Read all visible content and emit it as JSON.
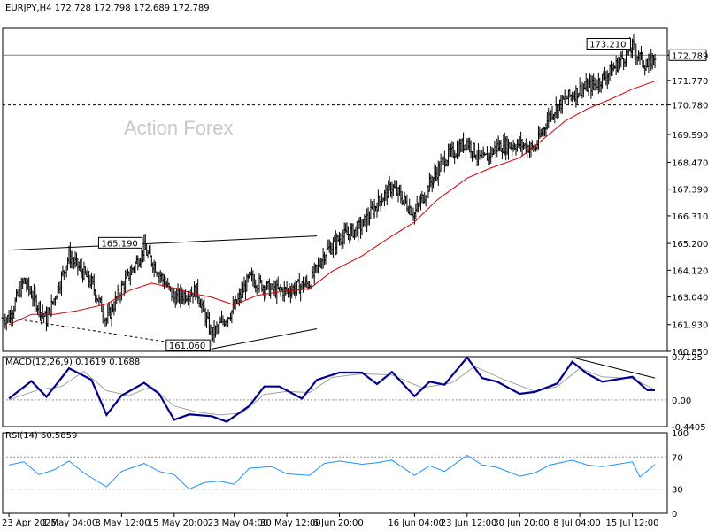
{
  "header": {
    "main": "EURJPY,H4  172.728 172.798 172.689 172.789",
    "macd": "MACD(12,26,9) 0.1619 0.1688",
    "rsi": "RSI(14) 60.5859"
  },
  "watermark": "Action Forex",
  "colors": {
    "bull": "#000000",
    "bear": "#000000",
    "ma": "#d00000",
    "macd": "#00008b",
    "signal": "#a0a0a0",
    "rsi": "#1e90ff",
    "frame": "#000000",
    "level": "#808080",
    "watermark": "#c8c8c8"
  },
  "chart_data": [
    {
      "type": "candlestick",
      "title": "EURJPY,H4",
      "ylim": [
        160.85,
        173.87
      ],
      "price_ticks": [
        173.87,
        172.789,
        171.77,
        170.78,
        169.59,
        168.47,
        167.39,
        166.31,
        165.2,
        164.12,
        163.04,
        161.93,
        160.85
      ],
      "price_tick_labels": [
        "",
        "172.789",
        "171.770",
        "170.780",
        "169.590",
        "168.470",
        "167.390",
        "166.310",
        "165.200",
        "164.120",
        "163.040",
        "161.930",
        "160.850"
      ],
      "last_price": 172.789,
      "level_lines": [
        {
          "value": 172.789,
          "style": "solid"
        },
        {
          "value": 170.78,
          "style": "dashed"
        }
      ],
      "annotations": [
        {
          "label": "173.210",
          "value": 173.21,
          "date": "15 Jul 2025"
        },
        {
          "label": "165.190",
          "value": 165.19,
          "date": "11 May 2025"
        },
        {
          "label": "161.060",
          "value": 161.06,
          "date": "20 May 2025"
        }
      ],
      "trendlines": [
        {
          "from": {
            "date": "23 Apr 2025",
            "value": 164.93
          },
          "to": {
            "date": "3 Jun 2025",
            "value": 165.5
          },
          "style": "solid"
        },
        {
          "from": {
            "date": "23 Apr 2025",
            "value": 162.2
          },
          "to": {
            "date": "20 May 2025",
            "value": 160.95
          },
          "style": "dashed"
        },
        {
          "from": {
            "date": "20 May 2025",
            "value": 160.95
          },
          "to": {
            "date": "3 Jun 2025",
            "value": 161.76
          },
          "style": "solid"
        }
      ],
      "x_tick_labels": [
        "23 Apr 2025",
        "1 May 04:00",
        "8 May 12:00",
        "15 May 20:00",
        "23 May 04:00",
        "30 May 12:00",
        "6 Jun 20:00",
        "16 Jun 04:00",
        "23 Jun 12:00",
        "30 Jun 20:00",
        "8 Jul 04:00",
        "15 Jul 12:00"
      ],
      "x_tick_dates": [
        "2025-04-23",
        "2025-05-01",
        "2025-05-08",
        "2025-05-15",
        "2025-05-23",
        "2025-05-30",
        "2025-06-06",
        "2025-06-16",
        "2025-06-23",
        "2025-06-30",
        "2025-07-08",
        "2025-07-15"
      ],
      "close_path": [
        [
          "2025-04-23",
          162.2
        ],
        [
          "2025-04-25",
          163.7
        ],
        [
          "2025-04-28",
          162.1
        ],
        [
          "2025-05-01",
          164.7
        ],
        [
          "2025-05-04",
          163.6
        ],
        [
          "2025-05-06",
          162.1
        ],
        [
          "2025-05-08",
          163.4
        ],
        [
          "2025-05-11",
          165.0
        ],
        [
          "2025-05-13",
          164.0
        ],
        [
          "2025-05-15",
          163.0
        ],
        [
          "2025-05-18",
          163.3
        ],
        [
          "2025-05-20",
          161.5
        ],
        [
          "2025-05-23",
          162.6
        ],
        [
          "2025-05-25",
          163.8
        ],
        [
          "2025-05-28",
          163.3
        ],
        [
          "2025-05-30",
          163.3
        ],
        [
          "2025-06-02",
          163.6
        ],
        [
          "2025-06-04",
          164.8
        ],
        [
          "2025-06-06",
          165.4
        ],
        [
          "2025-06-09",
          165.9
        ],
        [
          "2025-06-11",
          166.8
        ],
        [
          "2025-06-13",
          167.5
        ],
        [
          "2025-06-16",
          166.4
        ],
        [
          "2025-06-18",
          167.6
        ],
        [
          "2025-06-20",
          168.6
        ],
        [
          "2025-06-23",
          169.3
        ],
        [
          "2025-06-25",
          168.5
        ],
        [
          "2025-06-27",
          169.1
        ],
        [
          "2025-06-30",
          169.2
        ],
        [
          "2025-07-02",
          169.0
        ],
        [
          "2025-07-04",
          170.4
        ],
        [
          "2025-07-06",
          171.0
        ],
        [
          "2025-07-08",
          171.4
        ],
        [
          "2025-07-10",
          171.6
        ],
        [
          "2025-07-12",
          172.1
        ],
        [
          "2025-07-15",
          173.1
        ],
        [
          "2025-07-17",
          172.3
        ],
        [
          "2025-07-18",
          172.79
        ]
      ],
      "ma_path": [
        [
          "2025-04-23",
          161.93
        ],
        [
          "2025-04-26",
          162.34
        ],
        [
          "2025-04-29",
          162.34
        ],
        [
          "2025-05-02",
          162.48
        ],
        [
          "2025-05-06",
          162.76
        ],
        [
          "2025-05-09",
          163.3
        ],
        [
          "2025-05-12",
          163.6
        ],
        [
          "2025-05-15",
          163.4
        ],
        [
          "2025-05-18",
          163.15
        ],
        [
          "2025-05-20",
          163.03
        ],
        [
          "2025-05-23",
          162.72
        ],
        [
          "2025-05-26",
          163.1
        ],
        [
          "2025-05-29",
          163.25
        ],
        [
          "2025-06-02",
          163.37
        ],
        [
          "2025-06-05",
          164.07
        ],
        [
          "2025-06-09",
          164.7
        ],
        [
          "2025-06-13",
          165.5
        ],
        [
          "2025-06-16",
          166.06
        ],
        [
          "2025-06-19",
          166.95
        ],
        [
          "2025-06-23",
          167.83
        ],
        [
          "2025-06-26",
          168.22
        ],
        [
          "2025-06-30",
          168.65
        ],
        [
          "2025-07-03",
          169.37
        ],
        [
          "2025-07-06",
          170.12
        ],
        [
          "2025-07-09",
          170.62
        ],
        [
          "2025-07-12",
          171.0
        ],
        [
          "2025-07-15",
          171.42
        ],
        [
          "2025-07-18",
          171.74
        ]
      ]
    },
    {
      "type": "line",
      "title": "MACD(12,26,9)",
      "ylim": [
        -0.4405,
        0.7125
      ],
      "y_tick_labels": [
        "0.7125",
        "0.00",
        "-0.4405"
      ],
      "series": [
        {
          "name": "MACD(12,26,9)",
          "last": 0.1619,
          "points": [
            [
              "2025-04-23",
              0.02
            ],
            [
              "2025-04-26",
              0.31
            ],
            [
              "2025-04-28",
              0.05
            ],
            [
              "2025-05-01",
              0.52
            ],
            [
              "2025-05-04",
              0.33
            ],
            [
              "2025-05-06",
              -0.25
            ],
            [
              "2025-05-08",
              0.07
            ],
            [
              "2025-05-11",
              0.28
            ],
            [
              "2025-05-13",
              0.1
            ],
            [
              "2025-05-15",
              -0.33
            ],
            [
              "2025-05-17",
              -0.24
            ],
            [
              "2025-05-20",
              -0.27
            ],
            [
              "2025-05-22",
              -0.36
            ],
            [
              "2025-05-25",
              -0.1
            ],
            [
              "2025-05-27",
              0.22
            ],
            [
              "2025-05-29",
              0.22
            ],
            [
              "2025-06-01",
              0.02
            ],
            [
              "2025-06-03",
              0.33
            ],
            [
              "2025-06-06",
              0.45
            ],
            [
              "2025-06-09",
              0.45
            ],
            [
              "2025-06-11",
              0.26
            ],
            [
              "2025-06-13",
              0.46
            ],
            [
              "2025-06-16",
              0.06
            ],
            [
              "2025-06-18",
              0.3
            ],
            [
              "2025-06-20",
              0.25
            ],
            [
              "2025-06-23",
              0.7
            ],
            [
              "2025-06-25",
              0.36
            ],
            [
              "2025-06-27",
              0.3
            ],
            [
              "2025-06-30",
              0.1
            ],
            [
              "2025-07-02",
              0.13
            ],
            [
              "2025-07-05",
              0.27
            ],
            [
              "2025-07-07",
              0.63
            ],
            [
              "2025-07-09",
              0.43
            ],
            [
              "2025-07-11",
              0.3
            ],
            [
              "2025-07-15",
              0.38
            ],
            [
              "2025-07-17",
              0.16
            ],
            [
              "2025-07-18",
              0.16
            ]
          ]
        },
        {
          "name": "Signal",
          "last": 0.1688,
          "points": [
            [
              "2025-04-23",
              0.0
            ],
            [
              "2025-04-27",
              0.17
            ],
            [
              "2025-04-30",
              0.22
            ],
            [
              "2025-05-03",
              0.47
            ],
            [
              "2025-05-06",
              0.15
            ],
            [
              "2025-05-09",
              0.07
            ],
            [
              "2025-05-12",
              0.22
            ],
            [
              "2025-05-15",
              -0.1
            ],
            [
              "2025-05-18",
              -0.2
            ],
            [
              "2025-05-21",
              -0.25
            ],
            [
              "2025-05-24",
              -0.22
            ],
            [
              "2025-05-27",
              0.09
            ],
            [
              "2025-05-30",
              0.14
            ],
            [
              "2025-06-02",
              0.12
            ],
            [
              "2025-06-05",
              0.37
            ],
            [
              "2025-06-09",
              0.43
            ],
            [
              "2025-06-13",
              0.41
            ],
            [
              "2025-06-17",
              0.2
            ],
            [
              "2025-06-21",
              0.28
            ],
            [
              "2025-06-24",
              0.55
            ],
            [
              "2025-06-28",
              0.33
            ],
            [
              "2025-07-02",
              0.14
            ],
            [
              "2025-07-05",
              0.22
            ],
            [
              "2025-07-08",
              0.52
            ],
            [
              "2025-07-11",
              0.38
            ],
            [
              "2025-07-15",
              0.35
            ],
            [
              "2025-07-18",
              0.17
            ]
          ]
        }
      ],
      "trendline": {
        "from": {
          "date": "2025-07-07",
          "value": 0.7
        },
        "to": {
          "date": "2025-07-18",
          "value": 0.36
        }
      }
    },
    {
      "type": "line",
      "title": "RSI(14)",
      "ylim": [
        0,
        100
      ],
      "y_tick_labels": [
        "100",
        "70",
        "30",
        "0"
      ],
      "levels": [
        70,
        30
      ],
      "series": [
        {
          "name": "RSI(14)",
          "last": 60.5859,
          "points": [
            [
              "2025-04-23",
              60
            ],
            [
              "2025-04-25",
              64
            ],
            [
              "2025-04-27",
              48
            ],
            [
              "2025-04-29",
              54
            ],
            [
              "2025-05-01",
              65
            ],
            [
              "2025-05-03",
              50
            ],
            [
              "2025-05-06",
              33
            ],
            [
              "2025-05-08",
              52
            ],
            [
              "2025-05-11",
              62
            ],
            [
              "2025-05-13",
              52
            ],
            [
              "2025-05-15",
              48
            ],
            [
              "2025-05-17",
              30
            ],
            [
              "2025-05-19",
              38
            ],
            [
              "2025-05-21",
              40
            ],
            [
              "2025-05-23",
              36
            ],
            [
              "2025-05-25",
              56
            ],
            [
              "2025-05-28",
              58
            ],
            [
              "2025-05-30",
              49
            ],
            [
              "2025-06-02",
              47
            ],
            [
              "2025-06-04",
              62
            ],
            [
              "2025-06-06",
              65
            ],
            [
              "2025-06-09",
              61
            ],
            [
              "2025-06-11",
              63
            ],
            [
              "2025-06-13",
              66
            ],
            [
              "2025-06-16",
              47
            ],
            [
              "2025-06-18",
              59
            ],
            [
              "2025-06-20",
              52
            ],
            [
              "2025-06-23",
              72
            ],
            [
              "2025-06-25",
              60
            ],
            [
              "2025-06-27",
              57
            ],
            [
              "2025-06-30",
              46
            ],
            [
              "2025-07-02",
              50
            ],
            [
              "2025-07-04",
              60
            ],
            [
              "2025-07-07",
              66
            ],
            [
              "2025-07-09",
              60
            ],
            [
              "2025-07-11",
              58
            ],
            [
              "2025-07-15",
              64
            ],
            [
              "2025-07-16",
              45
            ],
            [
              "2025-07-18",
              60.59
            ]
          ]
        }
      ]
    }
  ]
}
